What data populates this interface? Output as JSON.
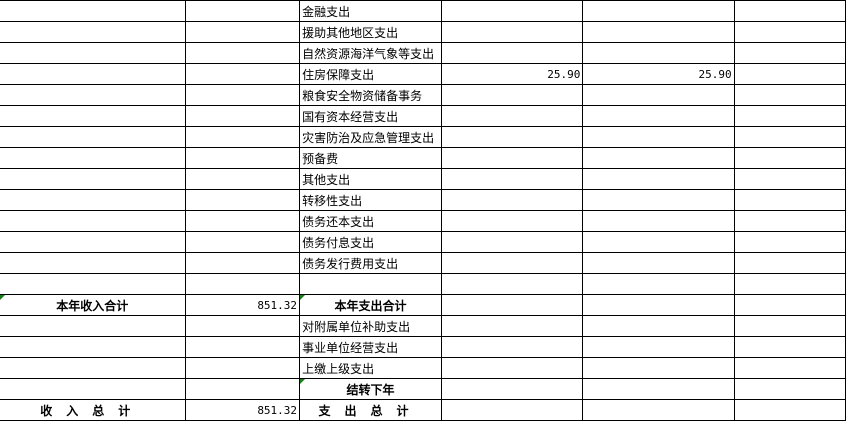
{
  "rows": [
    {
      "c0": "",
      "c1": "",
      "c2": "金融支出",
      "c3": "",
      "c4": "",
      "c5": ""
    },
    {
      "c0": "",
      "c1": "",
      "c2": "援助其他地区支出",
      "c3": "",
      "c4": "",
      "c5": ""
    },
    {
      "c0": "",
      "c1": "",
      "c2": "自然资源海洋气象等支出",
      "c3": "",
      "c4": "",
      "c5": ""
    },
    {
      "c0": "",
      "c1": "",
      "c2": "住房保障支出",
      "c3": "25.90",
      "c4": "25.90",
      "c5": ""
    },
    {
      "c0": "",
      "c1": "",
      "c2": "粮食安全物资储备事务",
      "c3": "",
      "c4": "",
      "c5": ""
    },
    {
      "c0": "",
      "c1": "",
      "c2": "国有资本经营支出",
      "c3": "",
      "c4": "",
      "c5": ""
    },
    {
      "c0": "",
      "c1": "",
      "c2": "灾害防治及应急管理支出",
      "c3": "",
      "c4": "",
      "c5": ""
    },
    {
      "c0": "",
      "c1": "",
      "c2": "预备费",
      "c3": "",
      "c4": "",
      "c5": ""
    },
    {
      "c0": "",
      "c1": "",
      "c2": "其他支出",
      "c3": "",
      "c4": "",
      "c5": ""
    },
    {
      "c0": "",
      "c1": "",
      "c2": "转移性支出",
      "c3": "",
      "c4": "",
      "c5": ""
    },
    {
      "c0": "",
      "c1": "",
      "c2": "债务还本支出",
      "c3": "",
      "c4": "",
      "c5": ""
    },
    {
      "c0": "",
      "c1": "",
      "c2": "债务付息支出",
      "c3": "",
      "c4": "",
      "c5": ""
    },
    {
      "c0": "",
      "c1": "",
      "c2": "债务发行费用支出",
      "c3": "",
      "c4": "",
      "c5": ""
    },
    {
      "c0": "",
      "c1": "",
      "c2": "",
      "c3": "",
      "c4": "",
      "c5": ""
    },
    {
      "c0": "本年收入合计",
      "c1": "851.32",
      "c2": "本年支出合计",
      "c3": "",
      "c4": "",
      "c5": ""
    },
    {
      "c0": "",
      "c1": "",
      "c2": "对附属单位补助支出",
      "c3": "",
      "c4": "",
      "c5": ""
    },
    {
      "c0": "",
      "c1": "",
      "c2": "事业单位经营支出",
      "c3": "",
      "c4": "",
      "c5": ""
    },
    {
      "c0": "",
      "c1": "",
      "c2": "上缴上级支出",
      "c3": "",
      "c4": "",
      "c5": ""
    },
    {
      "c0": "",
      "c1": "",
      "c2": "结转下年",
      "c3": "",
      "c4": "",
      "c5": ""
    },
    {
      "c0": "收入总计",
      "c1": "851.32",
      "c2": "支出总计",
      "c3": "",
      "c4": "",
      "c5": ""
    }
  ],
  "colors": {
    "comment_marker": "#1a7f1a",
    "grid": "#000000"
  }
}
